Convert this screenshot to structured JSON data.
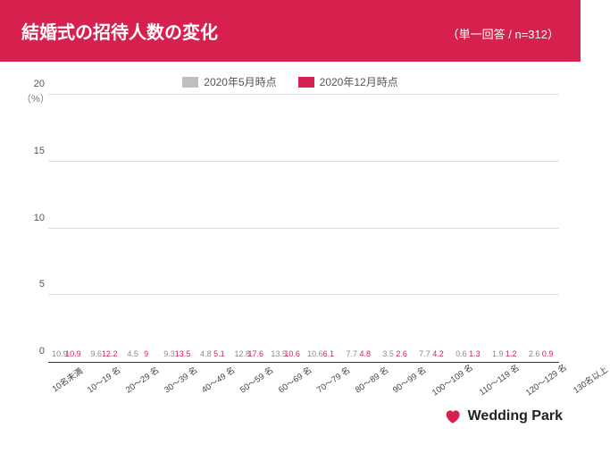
{
  "header": {
    "title": "結婚式の招待人数の変化",
    "subtitle": "（単一回答 / n=312）",
    "bg_color": "#d6214f",
    "text_color": "#ffffff"
  },
  "legend": {
    "series_a": {
      "label": "2020年5月時点",
      "color": "#bfbfbf"
    },
    "series_b": {
      "label": "2020年12月時点",
      "color": "#d6214f"
    }
  },
  "chart": {
    "y_unit": "（%）",
    "ylim_max": 20,
    "yticks": [
      0,
      5,
      10,
      15,
      20
    ],
    "grid_color": "#dddddd",
    "categories": [
      "10名未満",
      "10～19 名",
      "20～29 名",
      "30～39 名",
      "40～49 名",
      "50～59 名",
      "60～69 名",
      "70～79 名",
      "80～89 名",
      "90～99 名",
      "100～109 名",
      "110～119 名",
      "120～129 名",
      "130名以上"
    ],
    "series_a_values": [
      10.9,
      9.6,
      4.5,
      9.3,
      4.8,
      12.8,
      13.5,
      10.6,
      7.7,
      3.5,
      7.7,
      0.6,
      1.9,
      2.6
    ],
    "series_b_values": [
      10.9,
      12.2,
      9.0,
      13.5,
      5.1,
      17.6,
      10.6,
      6.1,
      4.8,
      2.6,
      4.2,
      1.3,
      1.2,
      0.9
    ],
    "label_color_a": "#8a8a8a",
    "label_color_b": "#d6214f"
  },
  "footer": {
    "brand": "Wedding Park",
    "heart_color": "#d6214f"
  }
}
